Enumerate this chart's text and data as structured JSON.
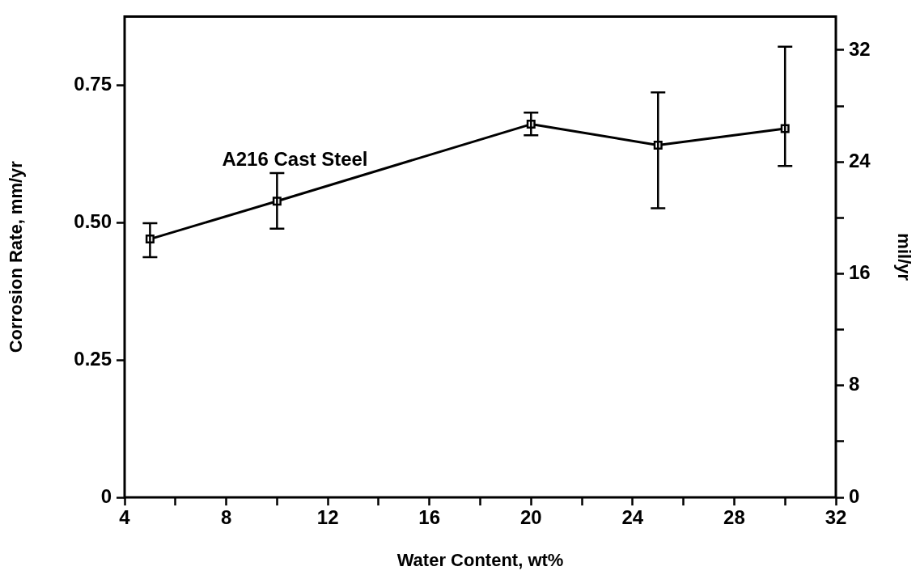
{
  "chart_data": {
    "type": "line",
    "xlabel": "Water Content, wt%",
    "ylabel": "Corrosion Rate, mm/yr",
    "y2label": "mil/yr",
    "x": [
      5,
      10,
      20,
      25,
      30
    ],
    "series": [
      {
        "name": "A216 Cast Steel",
        "color": "#000000",
        "values": [
          0.47,
          0.539,
          0.679,
          0.641,
          0.671
        ],
        "errors": [
          [
            0.437,
            0.499
          ],
          [
            0.489,
            0.59
          ],
          [
            0.659,
            0.7
          ],
          [
            0.526,
            0.737
          ],
          [
            0.603,
            0.82
          ]
        ]
      }
    ],
    "xlim": [
      4,
      32
    ],
    "xticks": [
      4,
      {
        "value": 6,
        "label": null
      },
      8,
      {
        "value": 10,
        "label": null
      },
      12,
      {
        "value": 14,
        "label": null
      },
      16,
      {
        "value": 18,
        "label": null
      },
      20,
      {
        "value": 22,
        "label": null
      },
      24,
      {
        "value": 26,
        "label": null
      },
      28,
      {
        "value": 30,
        "label": null
      },
      32
    ],
    "ylim": [
      0,
      0.875
    ],
    "yticks": [
      0,
      0.25,
      {
        "value": 0.5,
        "label": "0.50"
      },
      0.75
    ],
    "y2lim": [
      0,
      34.4
    ],
    "y2ticks": [
      0,
      {
        "value": 4,
        "label": null
      },
      8,
      {
        "value": 12,
        "label": null
      },
      16,
      {
        "value": 20,
        "label": null
      },
      24,
      {
        "value": 28,
        "label": null
      },
      32
    ],
    "marker": "square",
    "line_style": "solid",
    "grid": false,
    "legend": false
  }
}
